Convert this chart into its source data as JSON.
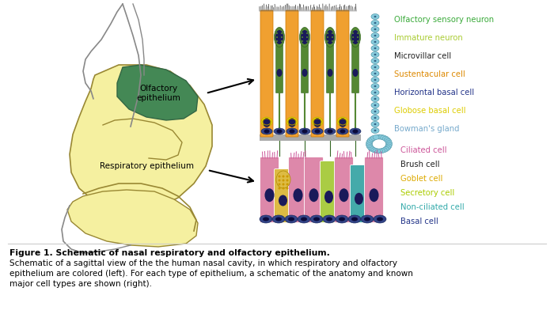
{
  "fig_width": 7.0,
  "fig_height": 4.21,
  "dpi": 100,
  "bg_color": "#ffffff",
  "title_bold": "Figure 1. Schematic of nasal respiratory and olfactory epithelium.",
  "caption_line1": "Schematic of a sagittal view of the the human nasal cavity, in which respiratory and olfactory",
  "caption_line2": "epithelium are colored (left). For each type of epithelium, a schematic of the anatomy and known",
  "caption_line3": "major cell types are shown (right).",
  "olfactory_labels": [
    {
      "text": "Olfactory sensory neuron",
      "color": "#3aaa3a"
    },
    {
      "text": "Immature neuron",
      "color": "#aacc33"
    },
    {
      "text": "Microvillar cell",
      "color": "#222222"
    },
    {
      "text": "Sustentacular cell",
      "color": "#dd8800"
    },
    {
      "text": "Horizontal basal cell",
      "color": "#223388"
    },
    {
      "text": "Globose basal cell",
      "color": "#ddcc00"
    },
    {
      "text": "Bowman's gland",
      "color": "#77aacc"
    }
  ],
  "respiratory_labels": [
    {
      "text": "Ciliated cell",
      "color": "#cc5599"
    },
    {
      "text": "Brush cell",
      "color": "#222222"
    },
    {
      "text": "Goblet cell",
      "color": "#ddaa00"
    },
    {
      "text": "Secretory cell",
      "color": "#aacc00"
    },
    {
      "text": "Non-ciliated cell",
      "color": "#33aaaa"
    },
    {
      "text": "Basal cell",
      "color": "#223388"
    }
  ],
  "nasal_body_color": "#f5f0a0",
  "nasal_edge_color": "#998833",
  "olf_fill_color": "#448855",
  "olf_edge_color": "#336644",
  "face_line_color": "#888888",
  "orange_cell": "#f0a030",
  "green_cell": "#558833",
  "yellow_cell": "#eedd00",
  "blue_cell": "#334488",
  "basal_cell_color": "#6688bb",
  "bowman_color": "#88ccdd",
  "pink_cell": "#dd88aa",
  "yellow_goblet": "#ddbb44",
  "lime_cell": "#aacc44",
  "teal_cell": "#44aaaa"
}
